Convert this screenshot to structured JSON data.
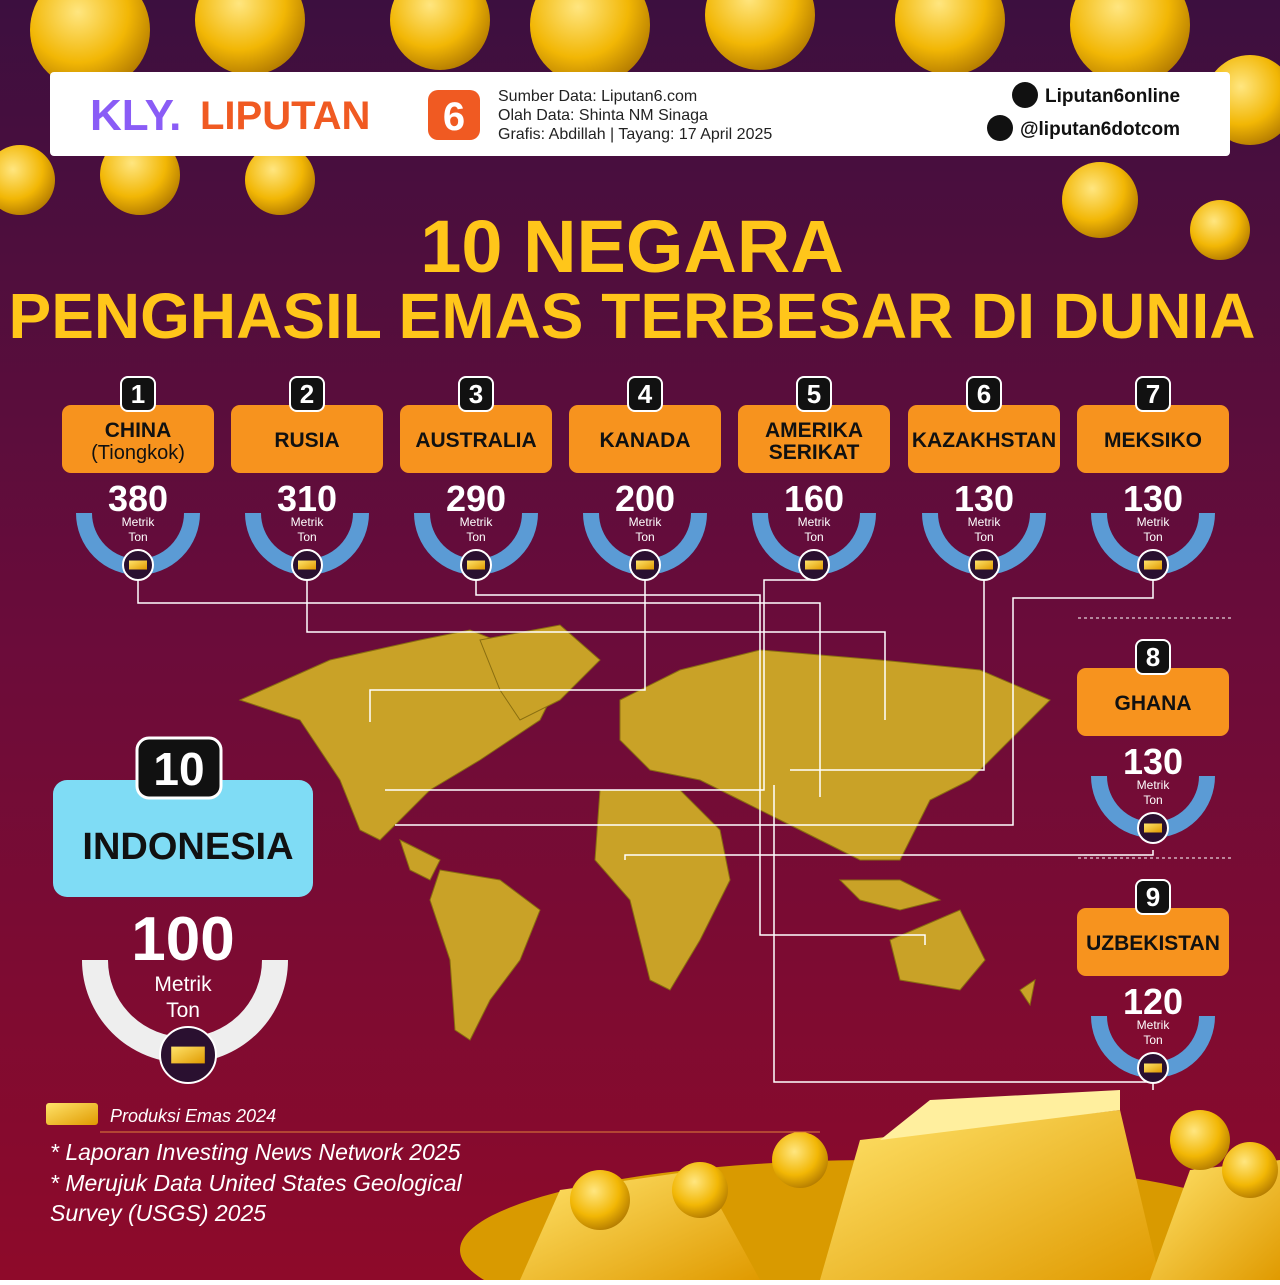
{
  "header": {
    "logo_kly": "KLY.",
    "logo_brand": "LIPUTAN",
    "logo_number": "6",
    "credits": [
      "Sumber Data: Liputan6.com",
      "Olah Data: Shinta NM Sinaga",
      "Grafis: Abdillah | Tayang: 17 April 2025"
    ],
    "facebook": "Liputan6online",
    "twitter": "@liputan6dotcom"
  },
  "title": [
    "10 NEGARA",
    "PENGHASIL EMAS TERBESAR DI DUNIA"
  ],
  "unit": [
    "Metrik",
    "Ton"
  ],
  "countries": [
    {
      "rank": 1,
      "name": [
        "CHINA",
        "(Tiongkok)"
      ],
      "value": 380
    },
    {
      "rank": 2,
      "name": [
        "RUSIA"
      ],
      "value": 310
    },
    {
      "rank": 3,
      "name": [
        "AUSTRALIA"
      ],
      "value": 290
    },
    {
      "rank": 4,
      "name": [
        "KANADA"
      ],
      "value": 200
    },
    {
      "rank": 5,
      "name": [
        "AMERIKA",
        "SERIKAT"
      ],
      "value": 160
    },
    {
      "rank": 6,
      "name": [
        "KAZAKHSTAN"
      ],
      "value": 130
    },
    {
      "rank": 7,
      "name": [
        "MEKSIKO"
      ],
      "value": 130
    },
    {
      "rank": 8,
      "name": [
        "GHANA"
      ],
      "value": 130
    },
    {
      "rank": 9,
      "name": [
        "UZBEKISTAN"
      ],
      "value": 120
    },
    {
      "rank": 10,
      "name": [
        "INDONESIA"
      ],
      "value": 100
    }
  ],
  "legend": "Produksi Emas 2024",
  "notes": [
    "* Laporan Investing News Network 2025",
    "* Merujuk Data United States Geological",
    "Survey (USGS) 2025"
  ]
}
